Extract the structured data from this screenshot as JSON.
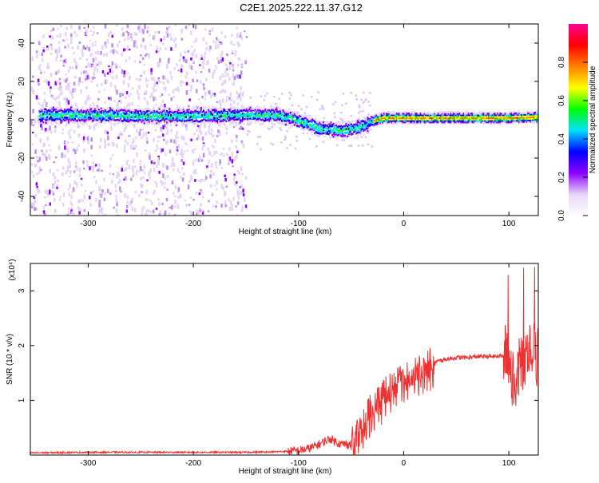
{
  "chart_data": [
    {
      "type": "heatmap",
      "title": "C2E1.2025.222.11.37.G12",
      "xlabel": "Height of straight line (km)",
      "ylabel": "Frequency (Hz)",
      "xlim": [
        -355,
        128
      ],
      "ylim": [
        -50,
        50
      ],
      "xticks": [
        -300,
        -200,
        -100,
        0,
        100
      ],
      "yticks": [
        -40,
        -20,
        0,
        20,
        40
      ],
      "colorbar": {
        "label": "Normalized spectral amplitude",
        "range": [
          0,
          1
        ],
        "ticks": [
          "0.0",
          "0.2",
          "0.4",
          "0.6",
          "0.8"
        ],
        "colormap": [
          "#ffffff",
          "#e6d5f7",
          "#8b00ff",
          "#0000ff",
          "#00e0ff",
          "#00ff00",
          "#ffff00",
          "#ff8000",
          "#ff0000",
          "#ff0090"
        ]
      },
      "ridge": [
        {
          "x": -345,
          "y": 3
        },
        {
          "x": -300,
          "y": 3
        },
        {
          "x": -250,
          "y": 2.5
        },
        {
          "x": -200,
          "y": 2.5
        },
        {
          "x": -150,
          "y": 3
        },
        {
          "x": -120,
          "y": 3
        },
        {
          "x": -100,
          "y": 0
        },
        {
          "x": -80,
          "y": -4
        },
        {
          "x": -60,
          "y": -5
        },
        {
          "x": -45,
          "y": -4
        },
        {
          "x": -30,
          "y": 0
        },
        {
          "x": -20,
          "y": 1.5
        },
        {
          "x": 0,
          "y": 1.5
        },
        {
          "x": 50,
          "y": 1.5
        },
        {
          "x": 100,
          "y": 1.5
        },
        {
          "x": 128,
          "y": 2
        }
      ]
    },
    {
      "type": "line",
      "xlabel": "Height of straight line (km)",
      "ylabel": "SNR (10 * v/v)",
      "yscale_label": "(x10⁴)",
      "xlim": [
        -355,
        128
      ],
      "ylim": [
        0,
        3.5
      ],
      "xticks": [
        -300,
        -200,
        -100,
        0,
        100
      ],
      "yticks": [
        1,
        2,
        3
      ],
      "series": [
        {
          "color": "#ee3030",
          "x": [
            -355,
            -300,
            -250,
            -200,
            -150,
            -120,
            -100,
            -90,
            -80,
            -70,
            -60,
            -50,
            -45,
            -40,
            -30,
            -20,
            -10,
            0,
            10,
            20,
            30,
            40,
            50,
            60,
            70,
            80,
            90,
            100,
            105,
            110,
            115,
            120,
            128
          ],
          "y": [
            0.04,
            0.05,
            0.05,
            0.05,
            0.05,
            0.06,
            0.08,
            0.12,
            0.2,
            0.3,
            0.2,
            0.2,
            0.4,
            0.6,
            0.9,
            1.1,
            1.3,
            1.4,
            1.55,
            1.65,
            1.7,
            1.75,
            1.78,
            1.78,
            1.8,
            1.8,
            1.8,
            1.85,
            1.2,
            1.6,
            1.8,
            2.0,
            1.75
          ]
        }
      ]
    }
  ]
}
